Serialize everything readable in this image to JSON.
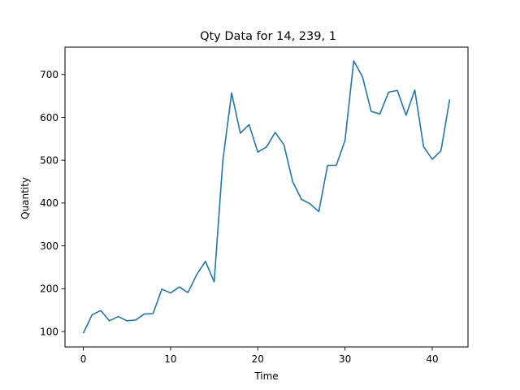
{
  "chart_data": {
    "type": "line",
    "title": "Qty Data for 14, 239, 1",
    "xlabel": "Time",
    "ylabel": "Quantity",
    "xlim": [
      -2.1,
      44.1
    ],
    "ylim": [
      64,
      764
    ],
    "xticks": [
      0,
      10,
      20,
      30,
      40
    ],
    "yticks": [
      100,
      200,
      300,
      400,
      500,
      600,
      700
    ],
    "grid": false,
    "color": "#1f77b4",
    "series": [
      {
        "x": [
          0,
          1,
          2,
          3,
          4,
          5,
          6,
          7,
          8,
          9,
          10,
          11,
          12,
          13,
          14,
          15,
          16,
          17,
          18,
          19,
          20,
          21,
          22,
          23,
          24,
          25,
          26,
          27,
          28,
          29,
          30,
          31,
          32,
          33,
          34,
          35,
          36,
          37,
          38,
          39,
          40,
          41,
          42
        ],
        "values": [
          96,
          139,
          149,
          125,
          135,
          125,
          127,
          141,
          142,
          199,
          190,
          204,
          191,
          233,
          264,
          216,
          500,
          657,
          563,
          583,
          519,
          531,
          565,
          536,
          450,
          409,
          398,
          380,
          488,
          488,
          546,
          732,
          695,
          614,
          608,
          659,
          663,
          605,
          664,
          532,
          502,
          522,
          642
        ]
      }
    ]
  }
}
